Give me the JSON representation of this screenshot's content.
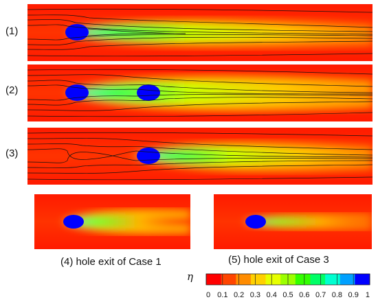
{
  "panels": [
    {
      "label": "(1)",
      "holes": 1
    },
    {
      "label": "(2)",
      "holes": 2
    },
    {
      "label": "(3)",
      "holes": 1
    }
  ],
  "bottom_panels": [
    {
      "caption": "(4) hole exit of Case 1"
    },
    {
      "caption": "(5) hole exit of Case 3"
    }
  ],
  "colorbar": {
    "symbol": "η",
    "ticks": [
      "0",
      "0.1",
      "0.2",
      "0.3",
      "0.4",
      "0.5",
      "0.6",
      "0.7",
      "0.8",
      "0.9",
      "1"
    ],
    "colors": [
      "#ff0000",
      "#ff4500",
      "#ff8c00",
      "#ffd000",
      "#e6ff00",
      "#9cff00",
      "#33ff00",
      "#00ff66",
      "#00ffd0",
      "#00a0ff",
      "#0000ff"
    ]
  }
}
